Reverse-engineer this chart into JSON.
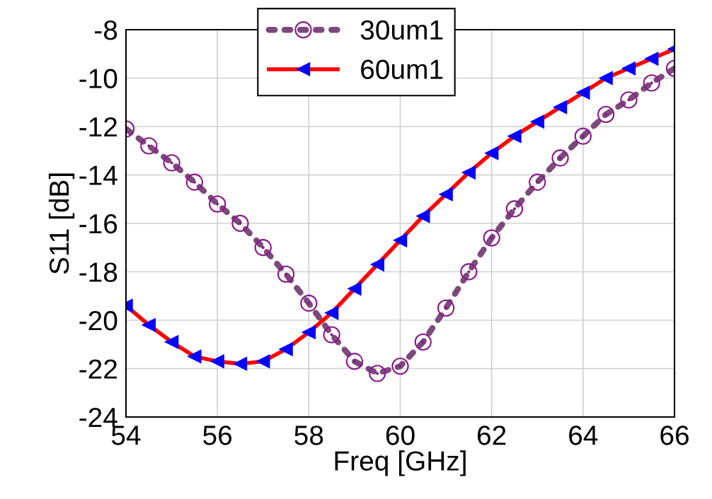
{
  "chart_data": {
    "type": "line",
    "xlabel": "Freq [GHz]",
    "ylabel": "S11 [dB]",
    "x": [
      54,
      54.5,
      55,
      55.5,
      56,
      56.5,
      57,
      57.5,
      58,
      58.5,
      59,
      59.5,
      60,
      60.5,
      61,
      61.5,
      62,
      62.5,
      63,
      63.5,
      64,
      64.5,
      65,
      65.5,
      66
    ],
    "series": [
      {
        "name": "30um1",
        "color": "#7b4a7b",
        "marker": "circle",
        "line_style": "dotted",
        "values": [
          -12.1,
          -12.8,
          -13.5,
          -14.3,
          -15.2,
          -16.0,
          -17.0,
          -18.1,
          -19.3,
          -20.6,
          -21.7,
          -22.2,
          -21.9,
          -20.9,
          -19.5,
          -18.0,
          -16.6,
          -15.4,
          -14.3,
          -13.3,
          -12.4,
          -11.5,
          -10.9,
          -10.2,
          -9.6
        ]
      },
      {
        "name": "60um1",
        "color": "#ff0000",
        "marker": "triangle",
        "line_style": "solid",
        "values": [
          -19.4,
          -20.2,
          -20.9,
          -21.5,
          -21.7,
          -21.8,
          -21.7,
          -21.2,
          -20.5,
          -19.7,
          -18.7,
          -17.7,
          -16.7,
          -15.7,
          -14.8,
          -13.9,
          -13.1,
          -12.4,
          -11.8,
          -11.2,
          -10.6,
          -10.0,
          -9.6,
          -9.2,
          -8.8
        ]
      }
    ],
    "xlim": [
      54,
      66
    ],
    "xticks": [
      54,
      56,
      58,
      60,
      62,
      64,
      66
    ],
    "ylim": [
      -24,
      -8
    ],
    "yticks": [
      -24,
      -22,
      -20,
      -18,
      -16,
      -14,
      -12,
      -10,
      -8
    ],
    "grid": true,
    "legend": "top"
  }
}
